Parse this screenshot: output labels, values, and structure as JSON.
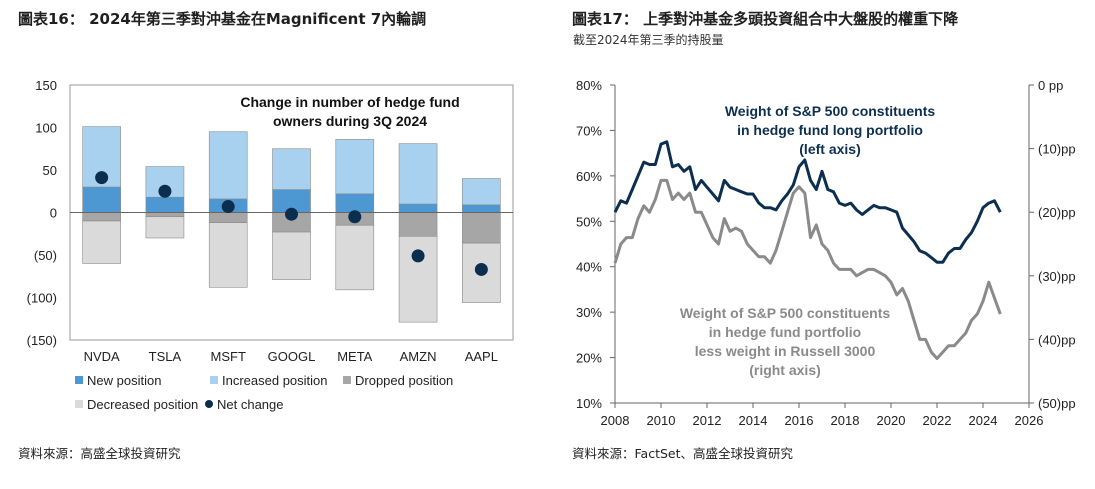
{
  "left": {
    "figure_title": "圖表16： 2024年第三季對沖基金在Magnificent 7內輪調",
    "source": "資料來源：高盛全球投資研究",
    "chart_data": {
      "type": "bar",
      "title": "Change in number of hedge fund owners during 3Q 2024",
      "categories": [
        "NVDA",
        "TSLA",
        "MSFT",
        "GOOGL",
        "META",
        "AMZN",
        "AAPL"
      ],
      "series": [
        {
          "name": "New position",
          "color": "#4d97d2",
          "values": [
            30,
            18,
            16,
            27,
            22,
            10,
            9
          ]
        },
        {
          "name": "Increased position",
          "color": "#a8d1ef",
          "values": [
            71,
            36,
            79,
            48,
            64,
            71,
            31
          ]
        },
        {
          "name": "Dropped position",
          "color": "#a6a6a6",
          "values": [
            -10,
            -5,
            -12,
            -23,
            -15,
            -28,
            -36
          ]
        },
        {
          "name": "Decreased position",
          "color": "#dadada",
          "values": [
            -50,
            -25,
            -76,
            -56,
            -76,
            -101,
            -70
          ]
        },
        {
          "name": "Net change",
          "color": "#0b2e4f",
          "values": [
            41,
            25,
            7,
            -2,
            -5,
            -51,
            -67
          ]
        }
      ],
      "yticks": [
        "150",
        "100",
        "50",
        "0",
        "(50)",
        "(100)",
        "(150)"
      ],
      "ylim": [
        -150,
        150
      ],
      "legend_position": "bottom"
    }
  },
  "right": {
    "figure_title": "圖表17： 上季對沖基金多頭投資組合中大盤股的權重下降",
    "figure_subtitle": "截至2024年第三季的持股量",
    "source": "資料來源：FactSet、高盛全球投資研究",
    "chart_data": {
      "type": "line",
      "x": [
        2008.0,
        2008.25,
        2008.5,
        2008.75,
        2009.0,
        2009.25,
        2009.5,
        2009.75,
        2010.0,
        2010.25,
        2010.5,
        2010.75,
        2011.0,
        2011.25,
        2011.5,
        2011.75,
        2012.0,
        2012.25,
        2012.5,
        2012.75,
        2013.0,
        2013.25,
        2013.5,
        2013.75,
        2014.0,
        2014.25,
        2014.5,
        2014.75,
        2015.0,
        2015.25,
        2015.5,
        2015.75,
        2016.0,
        2016.25,
        2016.5,
        2016.75,
        2017.0,
        2017.25,
        2017.5,
        2017.75,
        2018.0,
        2018.25,
        2018.5,
        2018.75,
        2019.0,
        2019.25,
        2019.5,
        2019.75,
        2020.0,
        2020.25,
        2020.5,
        2020.75,
        2021.0,
        2021.25,
        2021.5,
        2021.75,
        2022.0,
        2022.25,
        2022.5,
        2022.75,
        2023.0,
        2023.25,
        2023.5,
        2023.75,
        2024.0,
        2024.25,
        2024.5,
        2024.75
      ],
      "series": [
        {
          "name": "Weight of S&P 500 constituents in hedge fund long portfolio (left axis)",
          "axis": "left",
          "color": "#0d2f4f",
          "values": [
            52,
            54.5,
            54,
            57,
            60,
            63,
            62.5,
            62.5,
            67,
            67.5,
            62,
            62.5,
            61,
            62,
            57,
            59,
            57.5,
            56,
            54.5,
            59,
            57.5,
            57,
            56.5,
            56,
            56,
            54,
            53,
            53,
            52.5,
            54.5,
            56,
            58,
            62,
            63.5,
            59,
            57,
            61,
            57,
            56.5,
            54,
            53.5,
            54,
            52.5,
            51.5,
            52.5,
            53.5,
            53,
            53,
            52.5,
            52,
            48.5,
            47,
            45.5,
            43.5,
            43,
            42,
            41,
            41,
            43,
            44,
            44,
            46,
            47.5,
            50,
            53,
            54,
            54.5,
            52
          ]
        },
        {
          "name": "Weight of S&P 500 constituents in hedge fund portfolio less weight in Russell 3000 (right axis)",
          "axis": "right",
          "color": "#8a8a8a",
          "values": [
            -28,
            -25,
            -24,
            -24,
            -21,
            -19,
            -20,
            -18,
            -15,
            -15,
            -18,
            -17,
            -18,
            -17,
            -20,
            -20,
            -22,
            -24,
            -25,
            -21,
            -23,
            -22.5,
            -23,
            -25,
            -26,
            -27,
            -27,
            -28,
            -26,
            -23,
            -20,
            -17,
            -16,
            -17,
            -24,
            -22,
            -25,
            -26,
            -28,
            -29,
            -29,
            -29,
            -30,
            -29.5,
            -29,
            -29,
            -29.5,
            -30,
            -31,
            -33,
            -32,
            -34,
            -37,
            -40,
            -40,
            -42,
            -43,
            -42,
            -41,
            -41,
            -40,
            -39,
            -37,
            -36,
            -34,
            -31,
            -33.5,
            -36
          ]
        }
      ],
      "annotations": [
        "Weight of S&P 500 constituents in hedge fund long portfolio (left axis)",
        "Weight of S&P 500 constituents in hedge fund portfolio less weight in Russell 3000 (right axis)"
      ],
      "xticks": [
        "2008",
        "2010",
        "2012",
        "2014",
        "2016",
        "2018",
        "2020",
        "2022",
        "2024",
        "2026"
      ],
      "xlim": [
        2008,
        2026
      ],
      "yticks_left": [
        "80%",
        "70%",
        "60%",
        "50%",
        "40%",
        "30%",
        "20%",
        "10%"
      ],
      "ylim_left": [
        10,
        80
      ],
      "yticks_right": [
        "0 pp",
        "(10)pp",
        "(20)pp",
        "(30)pp",
        "(40)pp",
        "(50)pp"
      ],
      "ylim_right": [
        -50,
        0
      ]
    }
  }
}
